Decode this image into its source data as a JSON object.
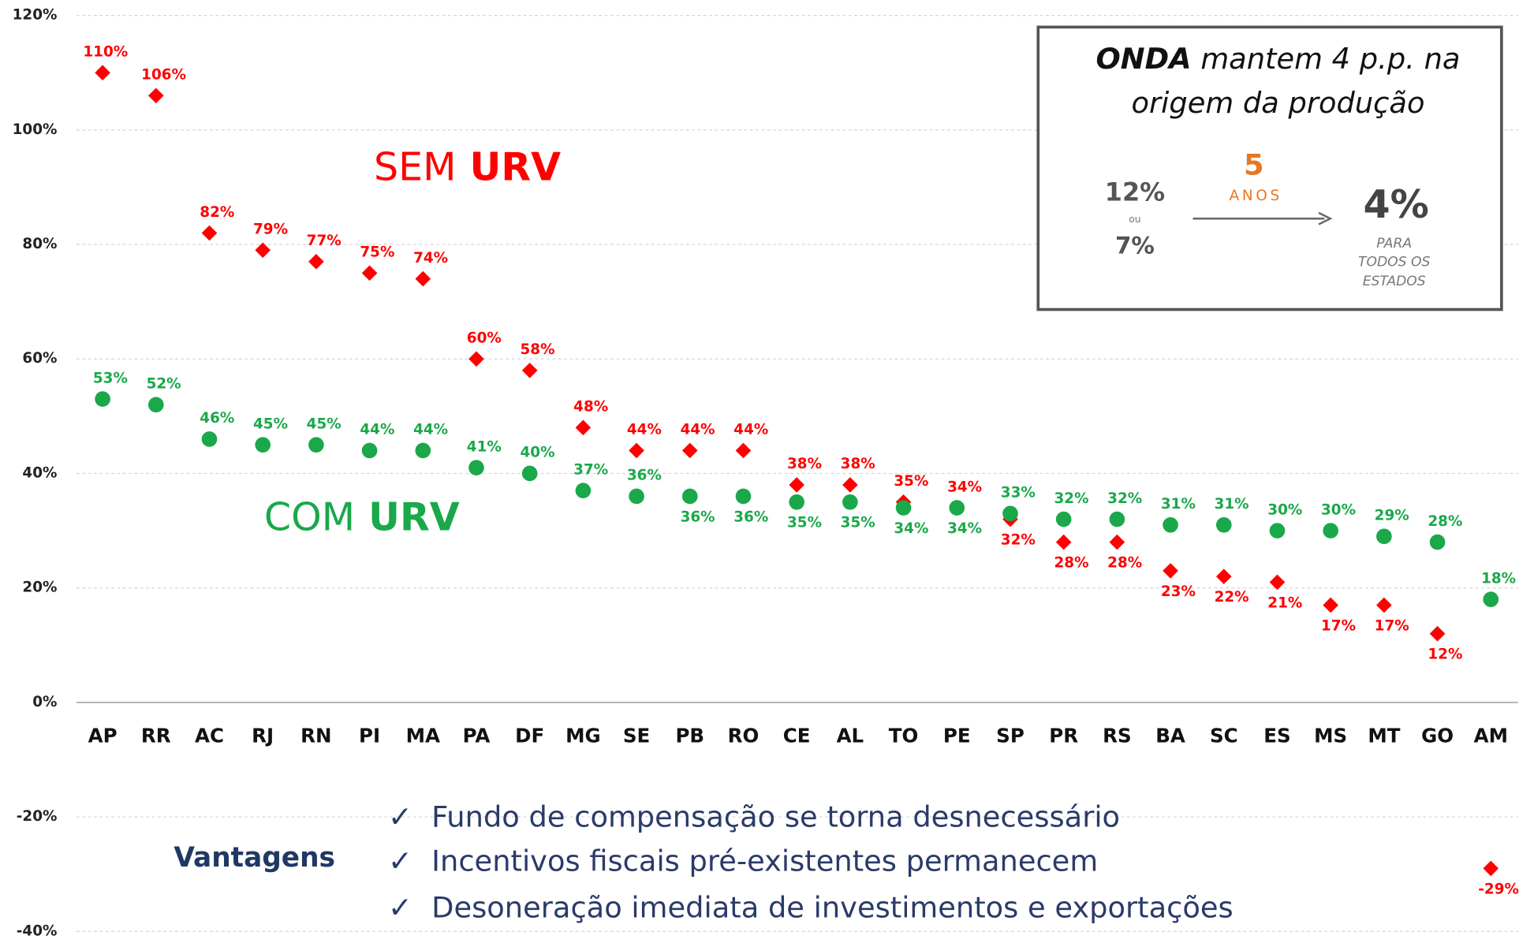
{
  "chart_data": {
    "type": "scatter",
    "categories": [
      "AP",
      "RR",
      "AC",
      "RJ",
      "RN",
      "PI",
      "MA",
      "PA",
      "DF",
      "MG",
      "SE",
      "PB",
      "RO",
      "CE",
      "AL",
      "TO",
      "PE",
      "SP",
      "PR",
      "RS",
      "BA",
      "SC",
      "ES",
      "MS",
      "MT",
      "GO",
      "AM"
    ],
    "series": [
      {
        "name": "SEM URV",
        "color": "#ff0000",
        "marker": "diamond",
        "values": [
          110,
          106,
          82,
          79,
          77,
          75,
          74,
          60,
          58,
          48,
          44,
          44,
          44,
          38,
          38,
          35,
          34,
          32,
          28,
          28,
          23,
          22,
          21,
          17,
          17,
          12,
          -29
        ],
        "value_labels": [
          "110%",
          "106%",
          "82%",
          "79%",
          "77%",
          "75%",
          "74%",
          "60%",
          "58%",
          "48%",
          "44%",
          "44%",
          "44%",
          "38%",
          "38%",
          "35%",
          "34%",
          "32%",
          "28%",
          "28%",
          "23%",
          "22%",
          "21%",
          "17%",
          "17%",
          "12%",
          "-29%"
        ]
      },
      {
        "name": "COM URV",
        "color": "#1aa84a",
        "marker": "circle",
        "values": [
          53,
          52,
          46,
          45,
          45,
          44,
          44,
          41,
          40,
          37,
          36,
          36,
          36,
          35,
          35,
          34,
          34,
          33,
          32,
          32,
          31,
          31,
          30,
          30,
          29,
          28,
          18
        ],
        "value_labels": [
          "53%",
          "52%",
          "46%",
          "45%",
          "45%",
          "44%",
          "44%",
          "41%",
          "40%",
          "37%",
          "36%",
          "36%",
          "36%",
          "35%",
          "35%",
          "34%",
          "34%",
          "33%",
          "32%",
          "32%",
          "31%",
          "31%",
          "30%",
          "30%",
          "29%",
          "28%",
          "18%"
        ]
      }
    ],
    "ylim": [
      -40,
      120
    ],
    "yticks": [
      {
        "value": -40,
        "label": "-40%"
      },
      {
        "value": -20,
        "label": "-20%"
      },
      {
        "value": 0,
        "label": "0%"
      },
      {
        "value": 20,
        "label": "20%"
      },
      {
        "value": 40,
        "label": "40%"
      },
      {
        "value": 60,
        "label": "60%"
      },
      {
        "value": 80,
        "label": "80%"
      },
      {
        "value": 100,
        "label": "100%"
      },
      {
        "value": 120,
        "label": "120%"
      }
    ],
    "grid": true,
    "box": {
      "title_bold": "ONDA",
      "title_rest": " mantem 4 p.p. na",
      "title_line2": "origem da produção",
      "from_high": "12%",
      "from_or": "ou",
      "from_low": "7%",
      "years": "5",
      "years_label": "ANOS",
      "to": "4%",
      "to_note": [
        "PARA",
        "TODOS OS",
        "ESTADOS"
      ]
    },
    "advantages_title": "Vantagens",
    "advantages": [
      "Fundo de compensação se torna desnecessário",
      "Incentivos fiscais pré-existentes permanecem",
      "Desoneração imediata de investimentos e exportações"
    ]
  }
}
